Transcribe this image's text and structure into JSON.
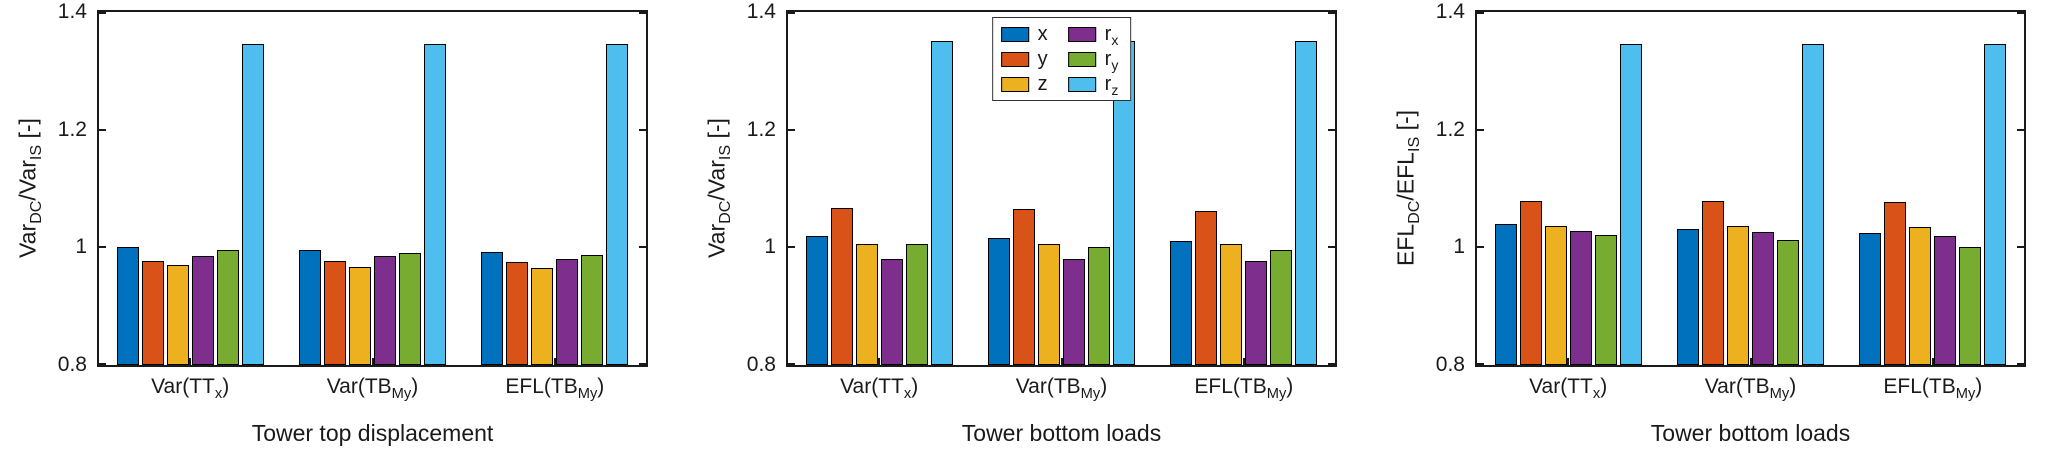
{
  "chart_data": [
    {
      "type": "bar",
      "title": "",
      "xlabel": "Tower top displacement",
      "ylabel": "Var_{DC}/Var_{IS} [-]",
      "ylim": [
        0.8,
        1.4
      ],
      "yticks": [
        0.8,
        1,
        1.2,
        1.4
      ],
      "ytick_labels": [
        "0.8",
        "1",
        "1.2",
        "1.4"
      ],
      "grid": false,
      "legend": false,
      "categories": [
        "Var(TT_{x})",
        "Var(TB_{My})",
        "EFL(TB_{My})"
      ],
      "series": [
        {
          "key": "x",
          "label": "x",
          "color": "#0072BD",
          "values": [
            1.0,
            0.995,
            0.992
          ]
        },
        {
          "key": "y",
          "label": "y",
          "color": "#D95319",
          "values": [
            0.976,
            0.976,
            0.975
          ]
        },
        {
          "key": "z",
          "label": "z",
          "color": "#EDB120",
          "values": [
            0.97,
            0.966,
            0.965
          ]
        },
        {
          "key": "rx",
          "label": "r_{x}",
          "color": "#7E2F8E",
          "values": [
            0.986,
            0.985,
            0.98
          ]
        },
        {
          "key": "ry",
          "label": "r_{y}",
          "color": "#77AC30",
          "values": [
            0.995,
            0.991,
            0.987
          ]
        },
        {
          "key": "rz",
          "label": "r_{z}",
          "color": "#4DBEEE",
          "values": [
            1.345,
            1.345,
            1.345
          ]
        }
      ]
    },
    {
      "type": "bar",
      "title": "",
      "xlabel": "Tower bottom loads",
      "ylabel": "Var_{DC}/Var_{IS} [-]",
      "ylim": [
        0.8,
        1.4
      ],
      "yticks": [
        0.8,
        1,
        1.2,
        1.4
      ],
      "ytick_labels": [
        "0.8",
        "1",
        "1.2",
        "1.4"
      ],
      "grid": false,
      "legend": true,
      "legend_position": "top-center",
      "categories": [
        "Var(TT_{x})",
        "Var(TB_{My})",
        "EFL(TB_{My})"
      ],
      "series": [
        {
          "key": "x",
          "label": "x",
          "color": "#0072BD",
          "values": [
            1.02,
            1.016,
            1.01
          ]
        },
        {
          "key": "y",
          "label": "y",
          "color": "#D95319",
          "values": [
            1.067,
            1.066,
            1.062
          ]
        },
        {
          "key": "z",
          "label": "z",
          "color": "#EDB120",
          "values": [
            1.006,
            1.005,
            1.005
          ]
        },
        {
          "key": "rx",
          "label": "r_{x}",
          "color": "#7E2F8E",
          "values": [
            0.981,
            0.98,
            0.976
          ]
        },
        {
          "key": "ry",
          "label": "r_{y}",
          "color": "#77AC30",
          "values": [
            1.005,
            1.0,
            0.996
          ]
        },
        {
          "key": "rz",
          "label": "r_{z}",
          "color": "#4DBEEE",
          "values": [
            1.35,
            1.35,
            1.35
          ]
        }
      ]
    },
    {
      "type": "bar",
      "title": "",
      "xlabel": "Tower bottom loads",
      "ylabel": "EFL_{DC}/EFL_{IS} [-]",
      "ylim": [
        0.8,
        1.4
      ],
      "yticks": [
        0.8,
        1,
        1.2,
        1.4
      ],
      "ytick_labels": [
        "0.8",
        "1",
        "1.2",
        "1.4"
      ],
      "grid": false,
      "legend": false,
      "categories": [
        "Var(TT_{x})",
        "Var(TB_{My})",
        "EFL(TB_{My})"
      ],
      "series": [
        {
          "key": "x",
          "label": "x",
          "color": "#0072BD",
          "values": [
            1.04,
            1.032,
            1.025
          ]
        },
        {
          "key": "y",
          "label": "y",
          "color": "#D95319",
          "values": [
            1.078,
            1.078,
            1.077
          ]
        },
        {
          "key": "z",
          "label": "z",
          "color": "#EDB120",
          "values": [
            1.037,
            1.036,
            1.035
          ]
        },
        {
          "key": "rx",
          "label": "r_{x}",
          "color": "#7E2F8E",
          "values": [
            1.027,
            1.026,
            1.02
          ]
        },
        {
          "key": "ry",
          "label": "r_{y}",
          "color": "#77AC30",
          "values": [
            1.021,
            1.012,
            1.0
          ]
        },
        {
          "key": "rz",
          "label": "r_{z}",
          "color": "#4DBEEE",
          "values": [
            1.345,
            1.345,
            1.345
          ]
        }
      ]
    }
  ],
  "style": {
    "axis_color": "#1a1a1a",
    "bar_edge_color": "#000000",
    "background": "#ffffff"
  }
}
